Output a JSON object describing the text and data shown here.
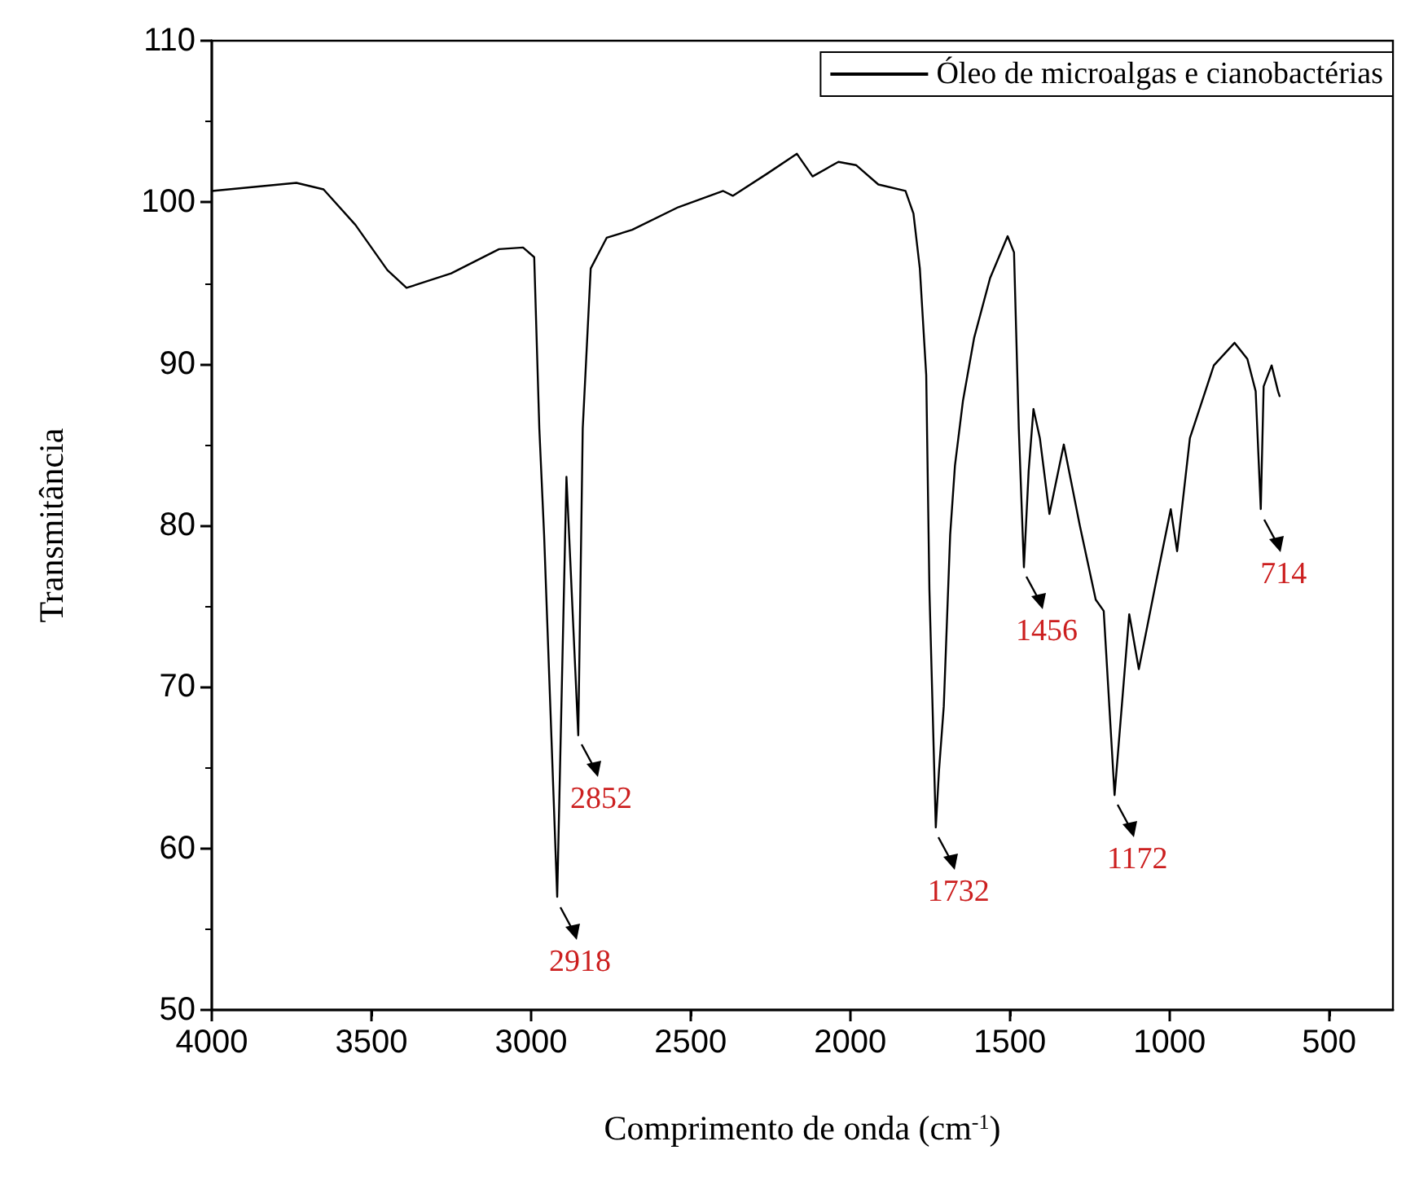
{
  "chart_data": {
    "type": "line",
    "xlabel": "Comprimento de onda (cm$^{-1}$)",
    "ylabel": "Transmitância",
    "xlim": [
      4000,
      300
    ],
    "xticks": [
      4000,
      3500,
      3000,
      2500,
      2000,
      1500,
      1000,
      500
    ],
    "ylim": [
      50,
      110
    ],
    "yticks": [
      50,
      60,
      70,
      80,
      90,
      100,
      110
    ],
    "grid": false,
    "legend": "top right",
    "marker": "none",
    "line_style": "solid",
    "series": [
      {
        "name": "Óleo de microalgas e cianobactérias",
        "color": "#000000",
        "x": [
          4000,
          3735,
          3650,
          3550,
          3450,
          3390,
          3250,
          3100,
          3025,
          2990,
          2974,
          2959,
          2918,
          2889,
          2852,
          2838,
          2813,
          2763,
          2683,
          2538,
          2398,
          2368,
          2258,
          2167,
          2118,
          2037,
          1982,
          1912,
          1827,
          1802,
          1782,
          1762,
          1752,
          1732,
          1722,
          1707,
          1687,
          1672,
          1647,
          1612,
          1562,
          1507,
          1487,
          1472,
          1456,
          1441,
          1426,
          1406,
          1376,
          1331,
          1281,
          1231,
          1206,
          1172,
          1126,
          1096,
          1046,
          996,
          976,
          936,
          861,
          796,
          756,
          730,
          714,
          705,
          680,
          660,
          655
        ],
        "values": [
          100.7,
          101.2,
          100.8,
          98.6,
          95.8,
          94.7,
          95.6,
          97.1,
          97.2,
          96.6,
          86.0,
          79.4,
          57.0,
          83.0,
          67.0,
          86.0,
          95.9,
          97.8,
          98.3,
          99.7,
          100.7,
          100.4,
          101.8,
          103.0,
          101.6,
          102.5,
          102.3,
          101.1,
          100.7,
          99.3,
          95.9,
          89.3,
          76.0,
          61.3,
          64.8,
          68.8,
          79.4,
          83.7,
          87.7,
          91.6,
          95.3,
          97.9,
          96.9,
          86.0,
          77.4,
          83.4,
          87.2,
          85.4,
          80.7,
          85.0,
          80.0,
          75.4,
          74.7,
          63.3,
          74.5,
          71.1,
          76.1,
          81.0,
          78.4,
          85.4,
          89.9,
          91.3,
          90.3,
          88.3,
          81.0,
          88.6,
          89.9,
          88.3,
          88.0
        ]
      }
    ],
    "annotations": [
      {
        "text": "2918",
        "x": 2918,
        "y": 57.0
      },
      {
        "text": "2852",
        "x": 2852,
        "y": 67.0
      },
      {
        "text": "1732",
        "x": 1732,
        "y": 61.3
      },
      {
        "text": "1456",
        "x": 1456,
        "y": 77.4
      },
      {
        "text": "1172",
        "x": 1172,
        "y": 63.3
      },
      {
        "text": "714",
        "x": 714,
        "y": 81.0
      }
    ]
  }
}
